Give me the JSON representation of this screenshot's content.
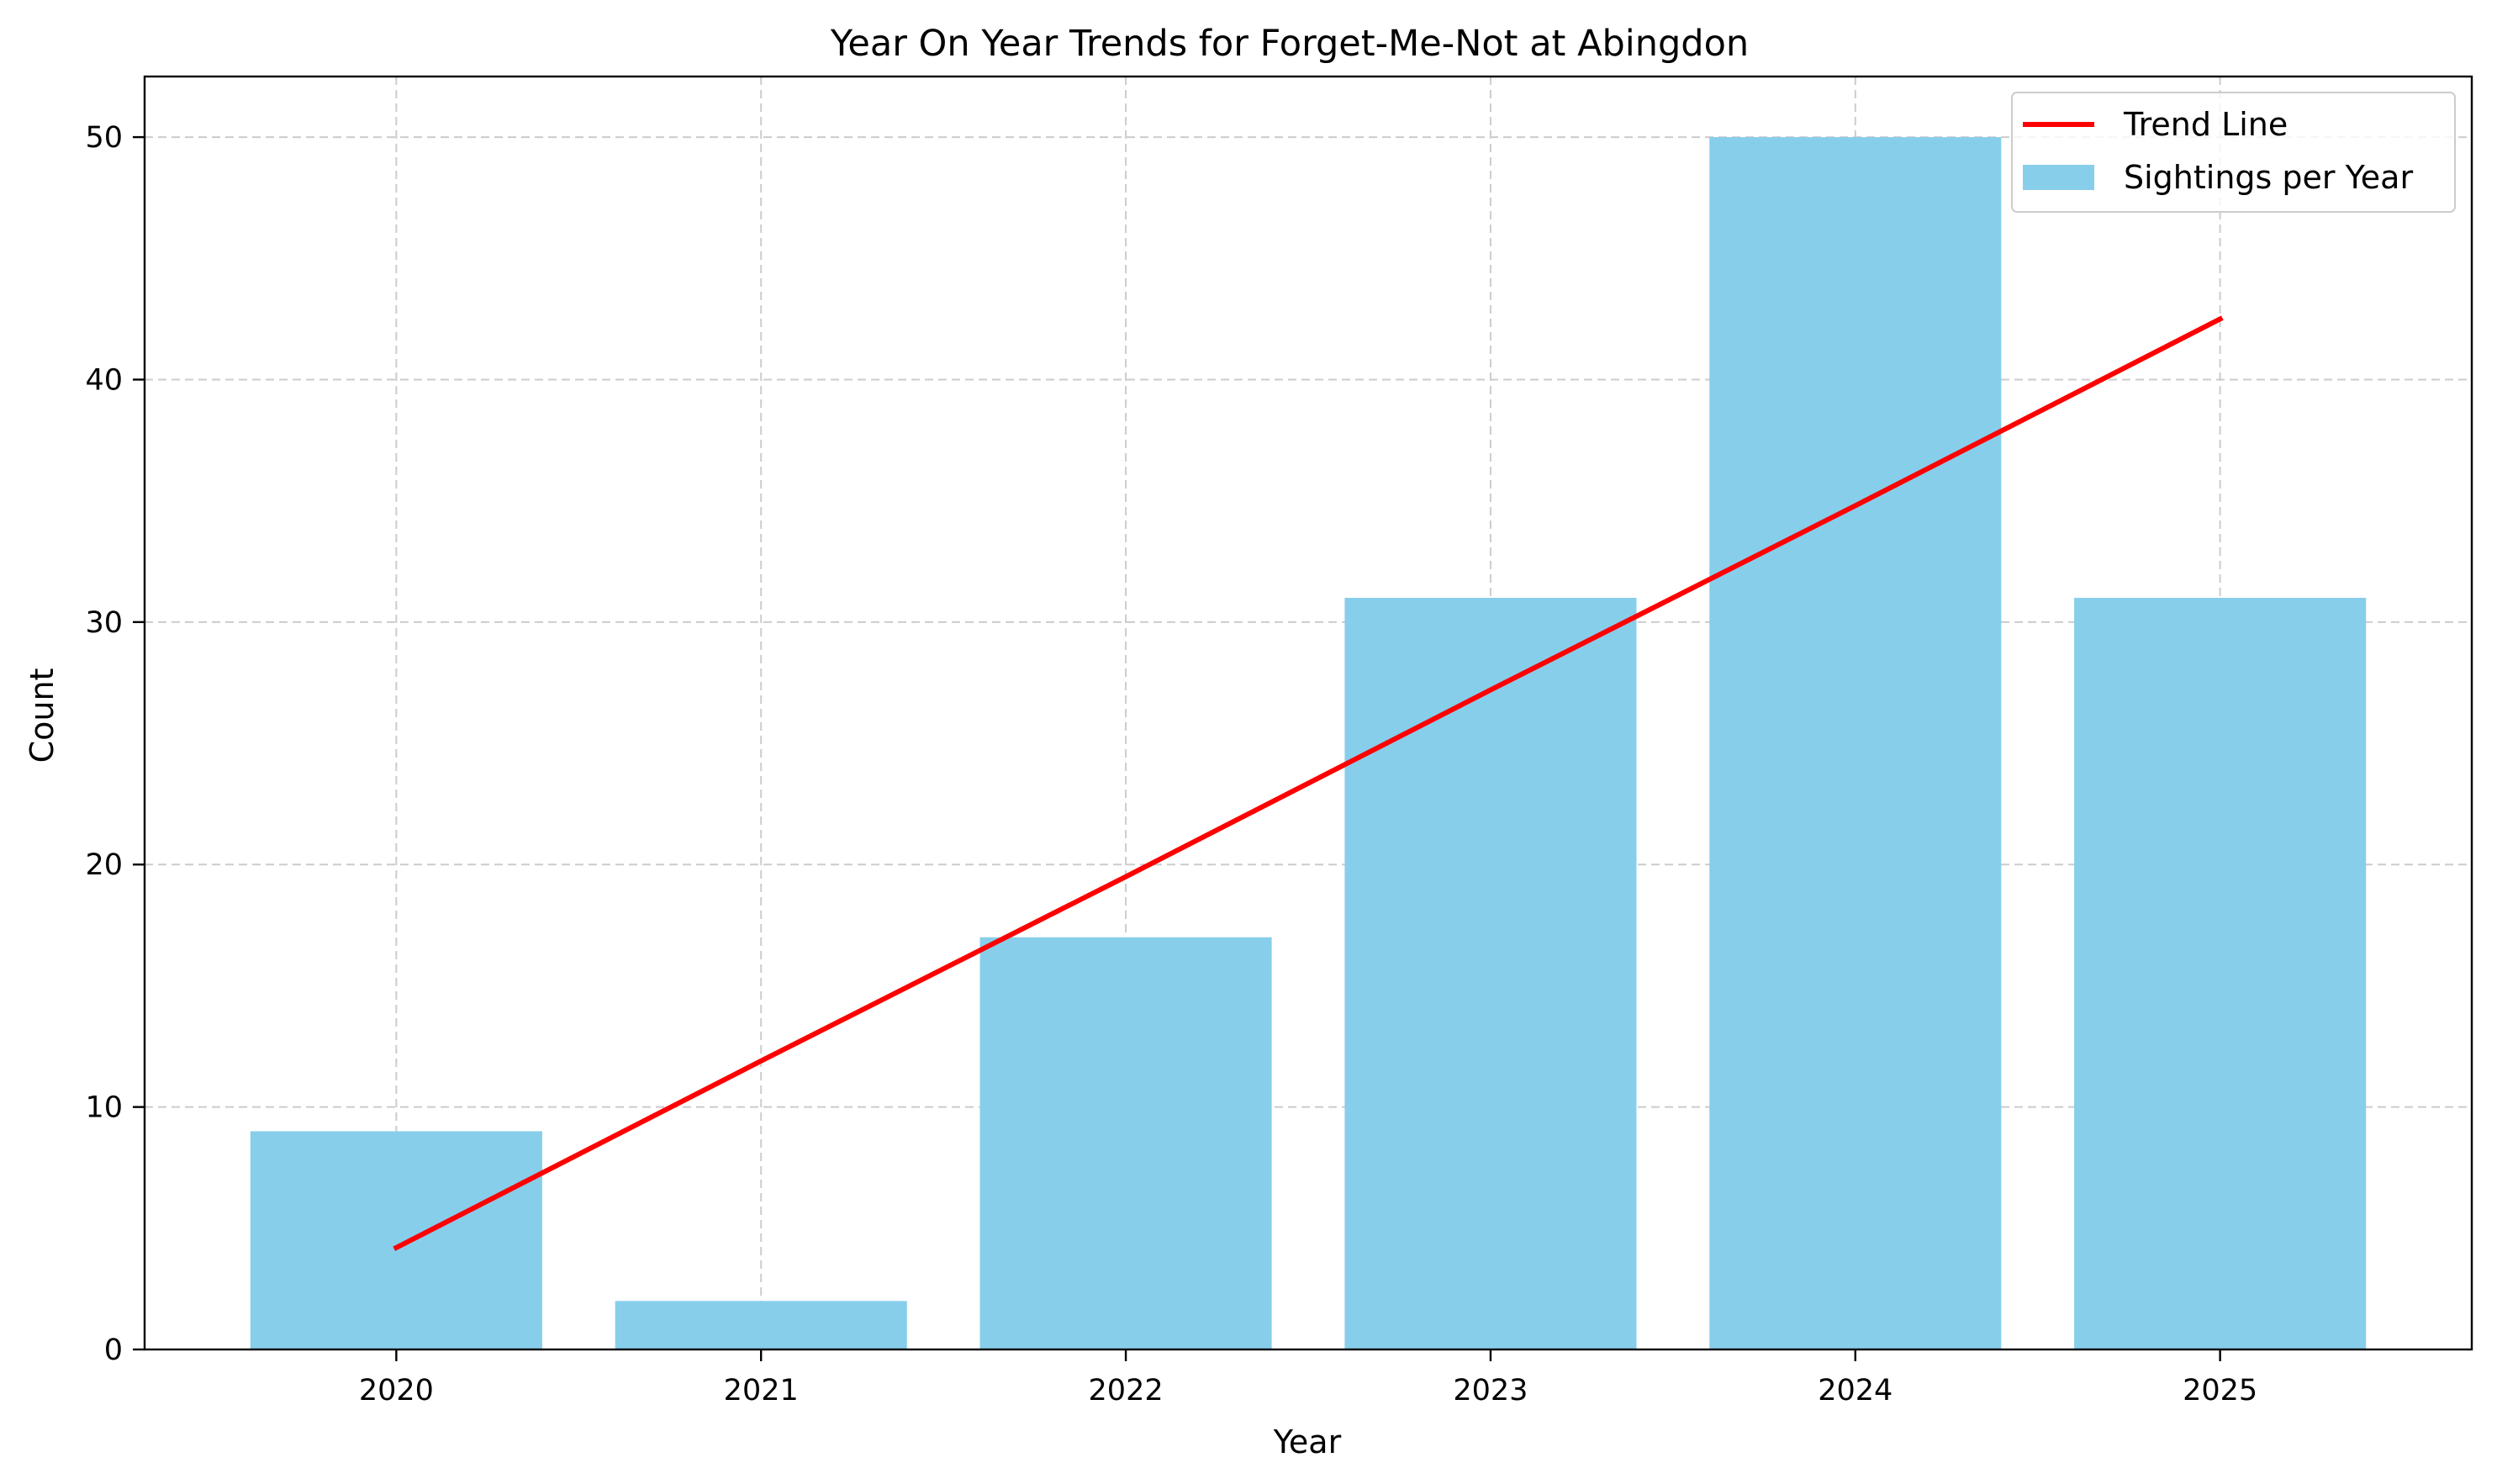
{
  "chart_data": {
    "type": "bar",
    "title": "Year On Year Trends for Forget-Me-Not at Abingdon",
    "xlabel": "Year",
    "ylabel": "Count",
    "categories": [
      "2020",
      "2021",
      "2022",
      "2023",
      "2024",
      "2025"
    ],
    "series": [
      {
        "name": "Sightings per Year",
        "type": "bar",
        "color": "#87ceeb",
        "values": [
          9,
          2,
          17,
          31,
          50,
          31
        ]
      },
      {
        "name": "Trend Line",
        "type": "line",
        "color": "#ff0000",
        "values": [
          4.2,
          11.9,
          19.5,
          27.2,
          34.8,
          42.5
        ]
      }
    ],
    "ylim": [
      0,
      52.5
    ],
    "yticks": [
      0,
      10,
      20,
      30,
      40,
      50
    ],
    "grid": true,
    "legend_position": "top-right"
  }
}
